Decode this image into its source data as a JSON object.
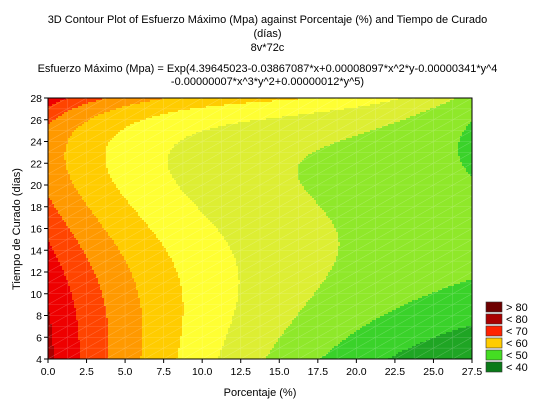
{
  "chart_data": {
    "type": "contour",
    "title_lines": [
      "3D Contour Plot of Esfuerzo Máximo (Mpa) against Porcentaje (%) and Tiempo de Curado",
      "(días)",
      "8v*72c"
    ],
    "equation_lines": [
      "Esfuerzo Máximo (Mpa) = Exp(4.39645023-0.03867087*x+0.00008097*x^2*y-0.00000341*y^4",
      "-0.00000007*x^3*y^2+0.00000012*y^5)"
    ],
    "xlabel": "Porcentaje (%)",
    "ylabel": "Tiempo de Curado (días)",
    "xlim": [
      0,
      27.5
    ],
    "ylim": [
      4,
      28
    ],
    "xticks": [
      "0.0",
      "2.5",
      "5.0",
      "7.5",
      "10.0",
      "12.5",
      "15.0",
      "17.5",
      "20.0",
      "22.5",
      "25.0",
      "27.5"
    ],
    "yticks": [
      "4",
      "6",
      "8",
      "10",
      "12",
      "14",
      "16",
      "18",
      "20",
      "22",
      "24",
      "26",
      "28"
    ],
    "levels": [
      40,
      45,
      50,
      55,
      60,
      65,
      70,
      75,
      80
    ],
    "band_colors": [
      "#0a7a18",
      "#1fa524",
      "#3ad22a",
      "#8fe82a",
      "#ddee33",
      "#ffff33",
      "#ffcc00",
      "#ff9900",
      "#ff4400",
      "#ee0000",
      "#aa0000",
      "#6e0000"
    ],
    "legend": [
      {
        "label": "> 80",
        "color": "#6e0000"
      },
      {
        "label": "< 80",
        "color": "#aa0000"
      },
      {
        "label": "< 70",
        "color": "#ff2200"
      },
      {
        "label": "< 60",
        "color": "#ffcc00"
      },
      {
        "label": "< 50",
        "color": "#44dd22"
      },
      {
        "label": "< 40",
        "color": "#0a7a18"
      }
    ]
  }
}
